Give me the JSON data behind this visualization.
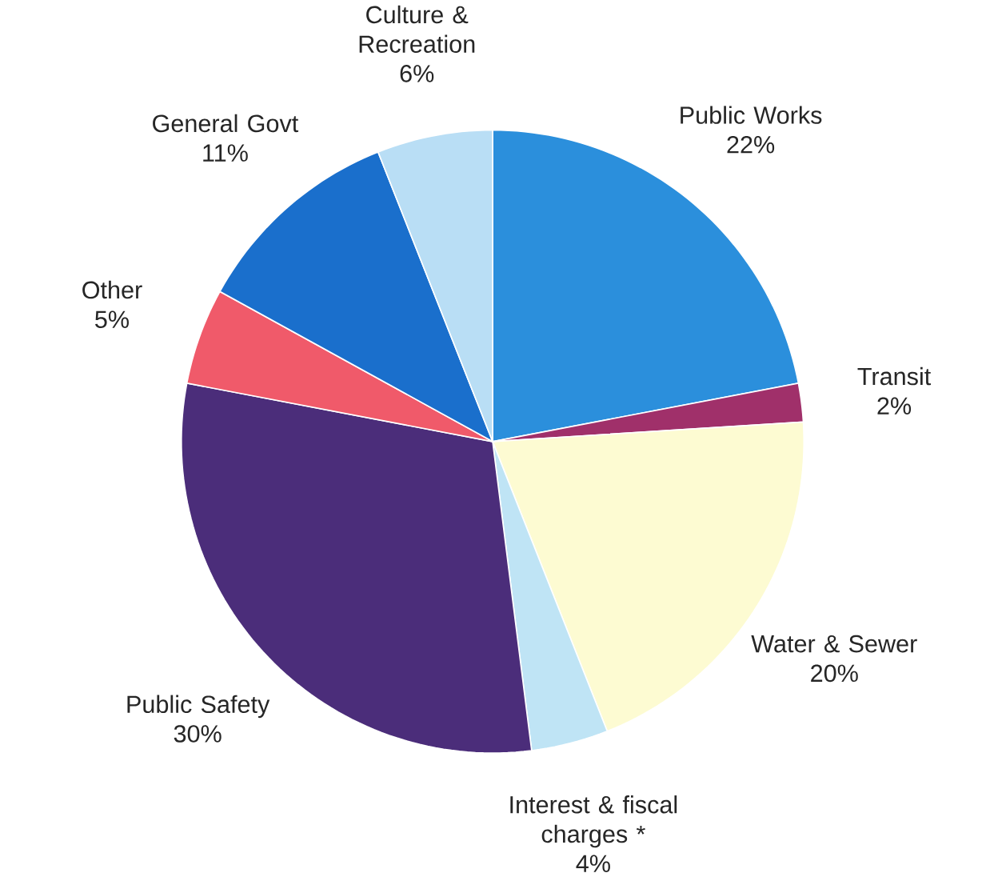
{
  "chart_data": {
    "type": "pie",
    "categories": [
      "Public Works",
      "Transit",
      "Water & Sewer",
      "Interest & fiscal charges *",
      "Public Safety",
      "Other",
      "General Govt",
      "Culture & Recreation"
    ],
    "values": [
      22,
      2,
      20,
      4,
      30,
      5,
      11,
      6
    ],
    "value_labels": [
      "22%",
      "2%",
      "20%",
      "4%",
      "30%",
      "5%",
      "11%",
      "6%"
    ],
    "colors": [
      "#2b8fdc",
      "#a0306a",
      "#fdfbd2",
      "#bfe4f5",
      "#4b2d7a",
      "#f05a6a",
      "#1a6fcc",
      "#b9def5"
    ]
  }
}
